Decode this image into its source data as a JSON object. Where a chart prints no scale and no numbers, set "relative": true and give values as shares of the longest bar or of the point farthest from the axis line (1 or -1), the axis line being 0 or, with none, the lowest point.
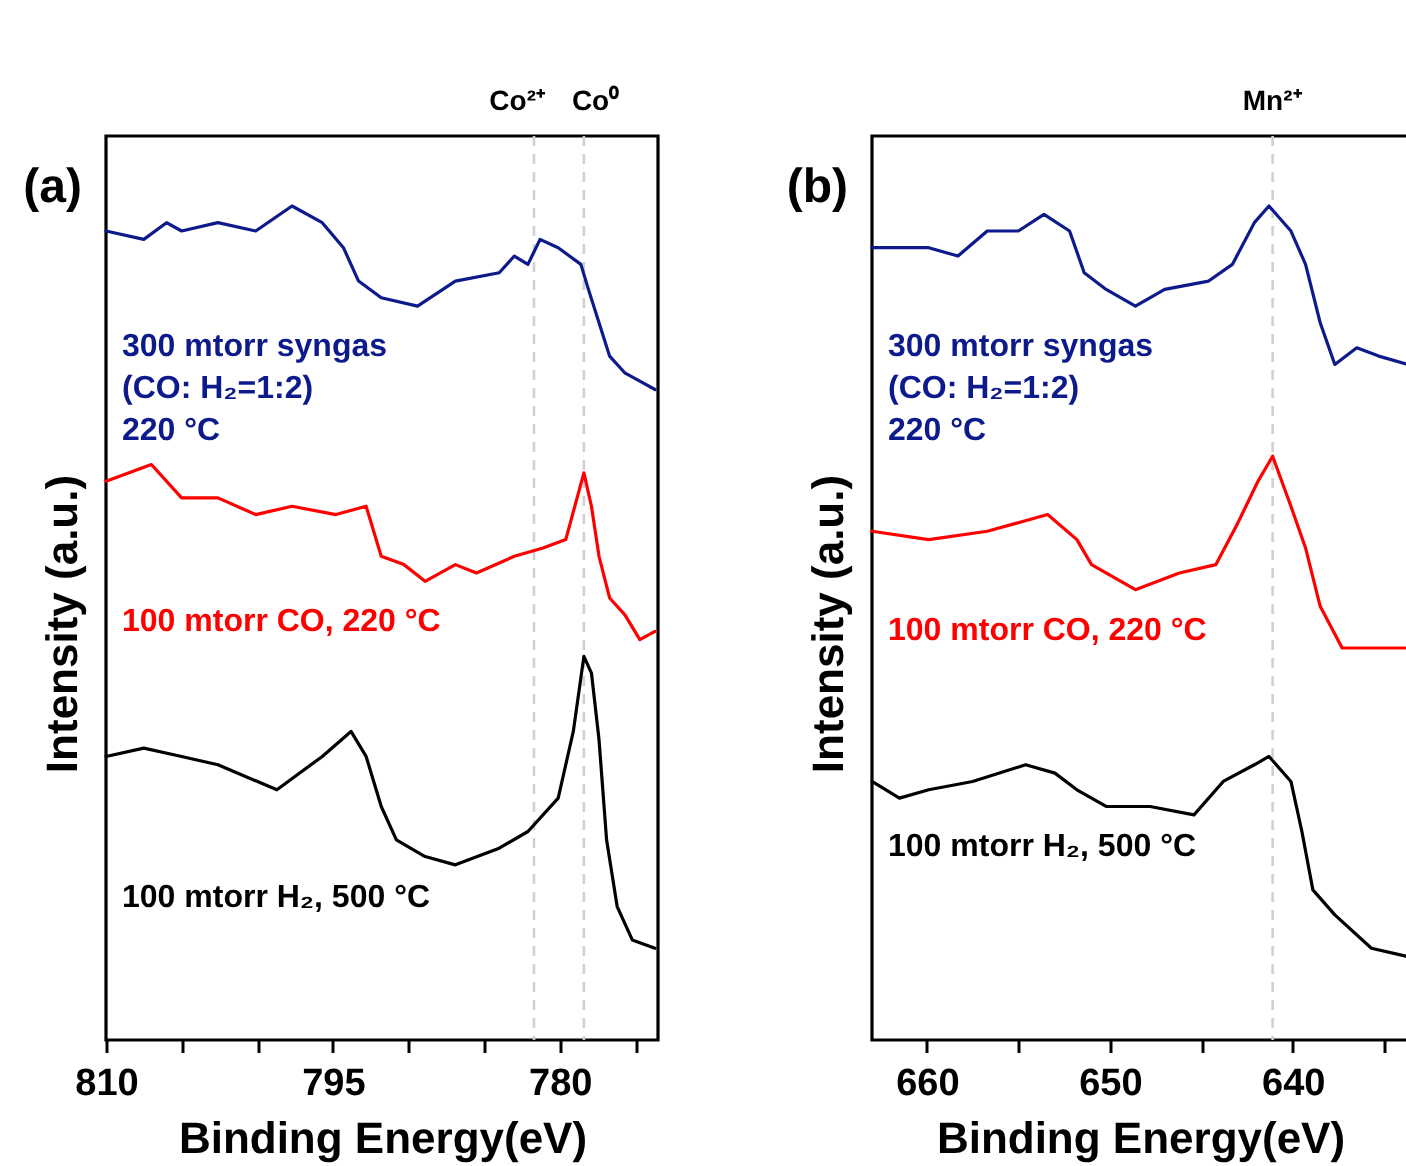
{
  "chart_data": [
    {
      "type": "line",
      "title": "(a)",
      "xlabel": "Binding Energy(eV)",
      "ylabel": "Intensity (a.u.)",
      "relative": true,
      "line_style": "solid",
      "xlim": [
        810,
        773.5
      ],
      "xticks": [
        810,
        {
          "value": 805,
          "label": null
        },
        {
          "value": 800,
          "label": null
        },
        795,
        {
          "value": 790,
          "label": null
        },
        {
          "value": 785,
          "label": null
        },
        780,
        {
          "value": 775,
          "label": null
        }
      ],
      "ref_lines": [
        {
          "axis": "x",
          "value": 781.7,
          "label": "Co²⁺",
          "color": "#d0d0d0",
          "line_style": "dashed"
        },
        {
          "axis": "x",
          "value": 778.4,
          "label": "Co⁰",
          "color": "#d0d0d0",
          "line_style": "dashed"
        }
      ],
      "series": [
        {
          "name": "300 mtorr syngas\n(CO: H₂=1:2)\n220 °C",
          "color": "#0d1a8c",
          "x": [
            810,
            807.5,
            806,
            805,
            802.6,
            800.1,
            797.7,
            795.7,
            794.3,
            793.3,
            791.8,
            789.4,
            786.9,
            784,
            783,
            782.1,
            781.3,
            780.1,
            778.6,
            778.1,
            777.4,
            776.7,
            775.7,
            774.7,
            773.7
          ],
          "values": [
            0.97,
            0.96,
            0.98,
            0.97,
            0.98,
            0.97,
            1.0,
            0.98,
            0.95,
            0.91,
            0.89,
            0.88,
            0.91,
            0.92,
            0.94,
            0.93,
            0.96,
            0.95,
            0.93,
            0.9,
            0.86,
            0.82,
            0.8,
            0.79,
            0.78
          ]
        },
        {
          "name": "100 mtorr CO, 220 °C",
          "color": "#ff0000",
          "x": [
            810,
            807,
            805,
            802.6,
            800.1,
            797.7,
            794.8,
            792.8,
            791.8,
            790.3,
            788.9,
            786.9,
            785.5,
            783,
            781.1,
            779.6,
            778.4,
            777.9,
            777.4,
            776.7,
            775.7,
            774.7,
            773.7
          ],
          "values": [
            0.67,
            0.69,
            0.65,
            0.65,
            0.63,
            0.64,
            0.63,
            0.64,
            0.58,
            0.57,
            0.55,
            0.57,
            0.56,
            0.58,
            0.59,
            0.6,
            0.68,
            0.64,
            0.58,
            0.53,
            0.51,
            0.48,
            0.49
          ]
        },
        {
          "name": "100 mtorr H₂, 500 °C",
          "color": "#000000",
          "x": [
            810,
            807.5,
            805,
            802.6,
            798.7,
            795.7,
            793.8,
            792.8,
            791.8,
            790.8,
            788.9,
            786.9,
            784,
            782.1,
            780.1,
            779.1,
            778.4,
            777.9,
            777.4,
            776.9,
            776.2,
            775.2,
            773.7
          ],
          "values": [
            0.34,
            0.35,
            0.34,
            0.33,
            0.3,
            0.34,
            0.37,
            0.34,
            0.28,
            0.24,
            0.22,
            0.21,
            0.23,
            0.25,
            0.29,
            0.37,
            0.46,
            0.44,
            0.36,
            0.24,
            0.16,
            0.12,
            0.11
          ]
        }
      ]
    },
    {
      "type": "line",
      "title": "(b)",
      "xlabel": "Binding Energy(eV)",
      "ylabel": "Intensity (a.u.)",
      "relative": true,
      "line_style": "solid",
      "xlim": [
        663,
        633.7
      ],
      "xticks": [
        660,
        {
          "value": 655,
          "label": null
        },
        650,
        {
          "value": 645,
          "label": null
        },
        640,
        {
          "value": 635,
          "label": null
        }
      ],
      "ref_lines": [
        {
          "axis": "x",
          "value": 641.1,
          "label": "Mn²⁺",
          "color": "#d0d0d0",
          "line_style": "dashed"
        }
      ],
      "series": [
        {
          "name": "300 mtorr syngas\n(CO: H₂=1:2)\n220 °C",
          "color": "#0d1a8c",
          "x": [
            663,
            661.5,
            659.9,
            658.3,
            656.7,
            655,
            653.6,
            652.2,
            651.4,
            650.2,
            648.6,
            647,
            644.6,
            643.3,
            642.1,
            641.3,
            640.1,
            639.3,
            638.5,
            637.7,
            636.5,
            635.3,
            633.7
          ],
          "values": [
            0.95,
            0.95,
            0.95,
            0.94,
            0.97,
            0.97,
            0.99,
            0.97,
            0.92,
            0.9,
            0.88,
            0.9,
            0.91,
            0.93,
            0.98,
            1.0,
            0.97,
            0.93,
            0.86,
            0.81,
            0.83,
            0.82,
            0.81
          ]
        },
        {
          "name": "100 mtorr CO, 220 °C",
          "color": "#ff0000",
          "x": [
            663,
            659.9,
            656.7,
            653.4,
            651.8,
            651,
            648.6,
            646.2,
            644.2,
            643,
            641.9,
            641.1,
            640.1,
            639.3,
            638.5,
            637.3,
            635.7,
            633.7
          ],
          "values": [
            0.61,
            0.6,
            0.61,
            0.63,
            0.6,
            0.57,
            0.54,
            0.56,
            0.57,
            0.62,
            0.67,
            0.7,
            0.64,
            0.59,
            0.52,
            0.47,
            0.47,
            0.47
          ]
        },
        {
          "name": "100 mtorr H₂, 500 °C",
          "color": "#000000",
          "x": [
            663,
            661.5,
            659.9,
            657.5,
            654.6,
            653,
            651.8,
            650.2,
            647.8,
            645.4,
            643.8,
            642.1,
            641.3,
            640.1,
            639.5,
            638.9,
            637.7,
            635.7,
            633.7
          ],
          "values": [
            0.31,
            0.29,
            0.3,
            0.31,
            0.33,
            0.32,
            0.3,
            0.28,
            0.28,
            0.27,
            0.31,
            0.33,
            0.34,
            0.31,
            0.25,
            0.18,
            0.15,
            0.11,
            0.1
          ]
        }
      ]
    }
  ]
}
